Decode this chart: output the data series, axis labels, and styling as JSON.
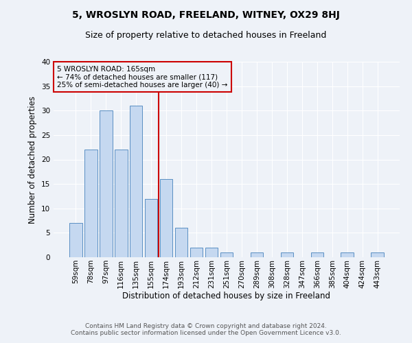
{
  "title1": "5, WROSLYN ROAD, FREELAND, WITNEY, OX29 8HJ",
  "title2": "Size of property relative to detached houses in Freeland",
  "xlabel": "Distribution of detached houses by size in Freeland",
  "ylabel": "Number of detached properties",
  "categories": [
    "59sqm",
    "78sqm",
    "97sqm",
    "116sqm",
    "135sqm",
    "155sqm",
    "174sqm",
    "193sqm",
    "212sqm",
    "231sqm",
    "251sqm",
    "270sqm",
    "289sqm",
    "308sqm",
    "328sqm",
    "347sqm",
    "366sqm",
    "385sqm",
    "404sqm",
    "424sqm",
    "443sqm"
  ],
  "values": [
    7,
    22,
    30,
    22,
    31,
    12,
    16,
    6,
    2,
    2,
    1,
    0,
    1,
    0,
    1,
    0,
    1,
    0,
    1,
    0,
    1
  ],
  "bar_color": "#c5d8f0",
  "bar_edgecolor": "#5a8fc3",
  "vline_x": 5.5,
  "vline_color": "#cc0000",
  "annotation_text": "5 WROSLYN ROAD: 165sqm\n← 74% of detached houses are smaller (117)\n25% of semi-detached houses are larger (40) →",
  "annotation_box_edgecolor": "#cc0000",
  "ylim": [
    0,
    40
  ],
  "yticks": [
    0,
    5,
    10,
    15,
    20,
    25,
    30,
    35,
    40
  ],
  "footer": "Contains HM Land Registry data © Crown copyright and database right 2024.\nContains public sector information licensed under the Open Government Licence v3.0.",
  "bg_color": "#eef2f8",
  "title1_fontsize": 10,
  "title2_fontsize": 9,
  "xlabel_fontsize": 8.5,
  "ylabel_fontsize": 8.5,
  "footer_fontsize": 6.5,
  "tick_fontsize": 7.5,
  "ann_fontsize": 7.5
}
